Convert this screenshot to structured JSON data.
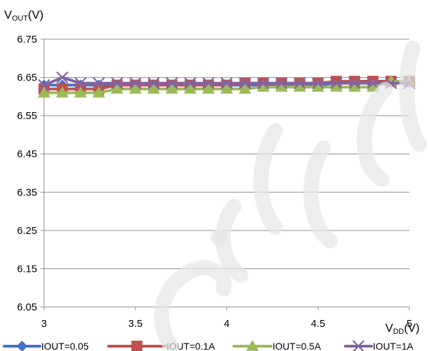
{
  "chart_data": {
    "type": "line",
    "title": "",
    "ylabel": {
      "main": "V",
      "sub": "OUT",
      "unit": "(V)"
    },
    "xlabel": {
      "main": "V",
      "sub": "DD",
      "unit": "(V)"
    },
    "xlim": [
      3,
      5
    ],
    "ylim": [
      6.05,
      6.75
    ],
    "x_ticks": [
      3,
      3.5,
      4,
      4.5,
      5
    ],
    "x_tick_labels": [
      "3",
      "3.5",
      "4",
      "4.5",
      "5"
    ],
    "y_ticks": [
      6.05,
      6.15,
      6.25,
      6.35,
      6.45,
      6.55,
      6.65,
      6.75
    ],
    "y_tick_labels": [
      "6.05",
      "6.15",
      "6.25",
      "6.35",
      "6.45",
      "6.55",
      "6.65",
      "6.75"
    ],
    "grid": "horizontal",
    "legend": "bottom",
    "x": [
      3.0,
      3.1,
      3.2,
      3.3,
      3.4,
      3.5,
      3.6,
      3.7,
      3.8,
      3.9,
      4.0,
      4.1,
      4.2,
      4.3,
      4.4,
      4.5,
      4.6,
      4.7,
      4.8,
      4.9,
      5.0
    ],
    "series": [
      {
        "name": "IOUT=0.05",
        "color": "#4472c4",
        "marker": "diamond",
        "values": [
          6.63,
          6.63,
          6.63,
          6.63,
          6.63,
          6.63,
          6.63,
          6.63,
          6.63,
          6.63,
          6.63,
          6.63,
          6.63,
          6.63,
          6.63,
          6.63,
          6.635,
          6.64,
          6.64,
          6.64,
          6.64
        ]
      },
      {
        "name": "IOUT=0.1A",
        "color": "#c0504d",
        "marker": "square",
        "values": [
          6.62,
          6.62,
          6.62,
          6.62,
          6.63,
          6.63,
          6.63,
          6.63,
          6.63,
          6.63,
          6.63,
          6.635,
          6.635,
          6.635,
          6.635,
          6.635,
          6.64,
          6.64,
          6.64,
          6.64,
          6.64
        ]
      },
      {
        "name": "IOUT=0.5A",
        "color": "#9bbb59",
        "marker": "triangle",
        "values": [
          6.61,
          6.61,
          6.61,
          6.61,
          6.62,
          6.62,
          6.62,
          6.62,
          6.62,
          6.62,
          6.62,
          6.62,
          6.625,
          6.625,
          6.625,
          6.625,
          6.625,
          6.625,
          6.625,
          6.64,
          6.64
        ]
      },
      {
        "name": "IOUT=1A",
        "color": "#8064a2",
        "marker": "x",
        "values": [
          6.63,
          6.65,
          6.635,
          6.635,
          6.635,
          6.635,
          6.635,
          6.635,
          6.635,
          6.635,
          6.635,
          6.635,
          6.635,
          6.635,
          6.635,
          6.635,
          6.635,
          6.635,
          6.635,
          6.635,
          6.635
        ]
      }
    ]
  }
}
